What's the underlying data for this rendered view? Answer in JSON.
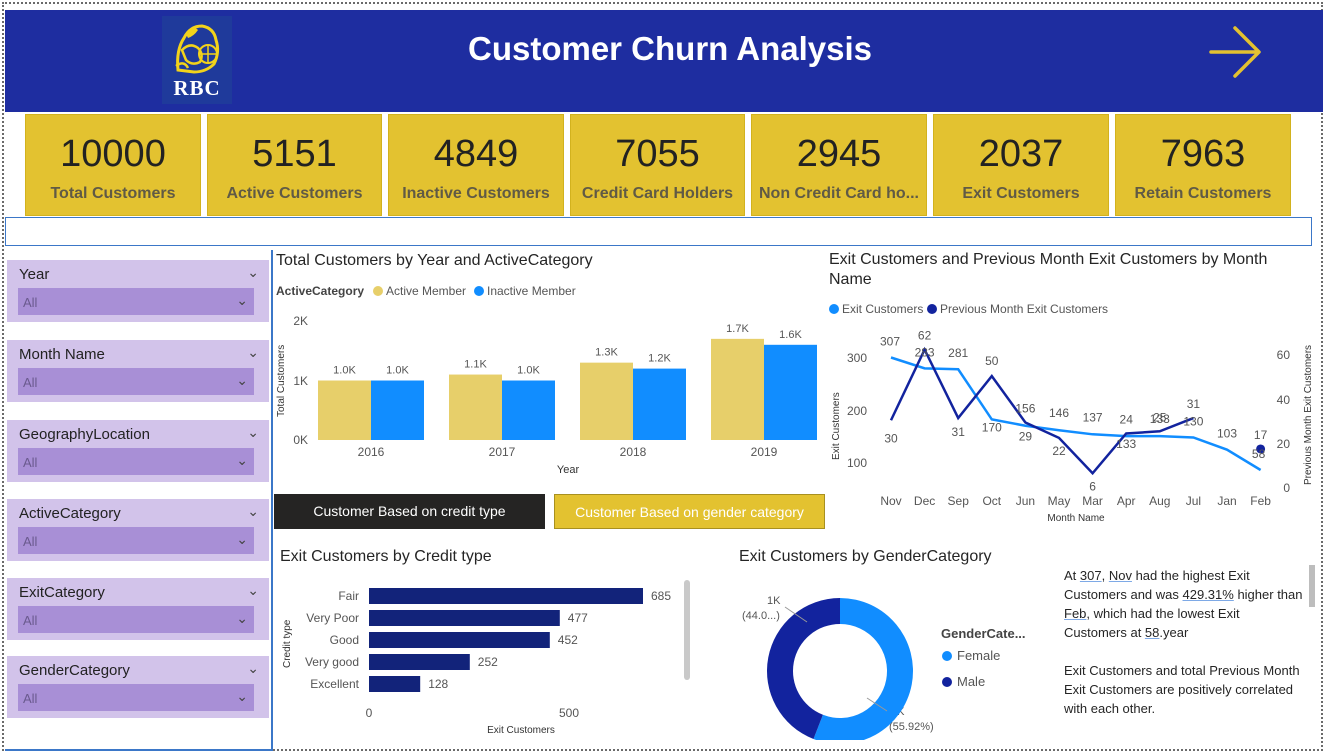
{
  "header": {
    "title": "Customer Churn Analysis",
    "logo_text": "RBC",
    "next_icon": "arrow-right-icon",
    "bg_color": "#1e2da0",
    "accent_color": "#e3c230"
  },
  "kpis": [
    {
      "value": "10000",
      "label": "Total Customers"
    },
    {
      "value": "5151",
      "label": "Active Customers"
    },
    {
      "value": "4849",
      "label": "Inactive Customers"
    },
    {
      "value": "7055",
      "label": "Credit Card Holders"
    },
    {
      "value": "2945",
      "label": "Non Credit Card ho..."
    },
    {
      "value": "2037",
      "label": "Exit Customers"
    },
    {
      "value": "7963",
      "label": "Retain Customers"
    }
  ],
  "slicers": [
    {
      "title": "Year",
      "value": "All"
    },
    {
      "title": "Month Name",
      "value": "All"
    },
    {
      "title": "GeographyLocation",
      "value": "All"
    },
    {
      "title": "ActiveCategory",
      "value": "All"
    },
    {
      "title": "ExitCategory",
      "value": "All"
    },
    {
      "title": "GenderCategory",
      "value": "All"
    }
  ],
  "buttons": {
    "credit": "Customer Based on credit type",
    "gender": "Customer Based on gender category"
  },
  "charts": {
    "year_chart": {
      "title": "Total Customers by Year and ActiveCategory",
      "legend_title": "ActiveCategory",
      "legend": [
        "Active Member",
        "Inactive Member"
      ],
      "xlabel": "Year",
      "ylabel": "Total Customers",
      "yticks": [
        "2K",
        "1K",
        "0K"
      ]
    },
    "month_chart": {
      "title_line1": "Exit Customers and Previous Month Exit Customers by Month",
      "title_line2": "Name",
      "legend": [
        "Exit Customers",
        "Previous Month Exit Customers"
      ],
      "xlabel": "Month Name",
      "ylabel_left": "Exit Customers",
      "ylabel_right": "Previous Month Exit Customers",
      "left_ticks": [
        "300",
        "200",
        "100"
      ],
      "right_ticks": [
        "60",
        "40",
        "20",
        "0"
      ]
    },
    "credit_chart": {
      "title": "Exit Customers by Credit type",
      "xlabel": "Exit Customers",
      "ylabel": "Credit type",
      "xticks": [
        "0",
        "500"
      ]
    },
    "gender_chart": {
      "title": "Exit Customers by GenderCategory",
      "legend_title": "GenderCate...",
      "labels": [
        {
          "l1": "1K",
          "l2": "(44.0...)"
        },
        {
          "l1": "1K",
          "l2": "(55.92%)"
        }
      ]
    }
  },
  "insight": {
    "p1_parts": [
      "At ",
      "307",
      ", ",
      "Nov",
      " had the highest Exit Customers and was ",
      "429.31%",
      " higher than ",
      "Feb",
      ", which had the lowest Exit Customers at ",
      "58",
      ".year"
    ],
    "p2": "Exit Customers and total Previous Month Exit Customers are positively correlated with each other."
  },
  "chart_data": [
    {
      "type": "bar",
      "title": "Total Customers by Year and ActiveCategory",
      "categories": [
        "2016",
        "2017",
        "2018",
        "2019"
      ],
      "series": [
        {
          "name": "Active Member",
          "values": [
            1000,
            1100,
            1300,
            1700
          ],
          "labels": [
            "1.0K",
            "1.1K",
            "1.3K",
            "1.7K"
          ],
          "color": "#e7cf6a"
        },
        {
          "name": "Inactive Member",
          "values": [
            1000,
            1000,
            1200,
            1600
          ],
          "labels": [
            "1.0K",
            "1.0K",
            "1.2K",
            "1.6K"
          ],
          "color": "#118dff"
        }
      ],
      "ylim": [
        0,
        2000
      ],
      "xlabel": "Year",
      "ylabel": "Total Customers"
    },
    {
      "type": "line",
      "title": "Exit Customers and Previous Month Exit Customers by Month Name",
      "categories": [
        "Nov",
        "Dec",
        "Sep",
        "Oct",
        "Jun",
        "May",
        "Mar",
        "Apr",
        "Aug",
        "Jul",
        "Jan",
        "Feb"
      ],
      "series": [
        {
          "name": "Exit Customers",
          "axis": "left",
          "values": [
            307,
            283,
            281,
            170,
            156,
            146,
            137,
            133,
            133,
            130,
            103,
            58
          ],
          "color": "#118dff"
        },
        {
          "name": "Previous Month Exit Customers",
          "axis": "right",
          "values": [
            30,
            62,
            31,
            50,
            29,
            22,
            6,
            24,
            25,
            31,
            null,
            17
          ],
          "color": "#12239e"
        }
      ],
      "ylim_left": [
        50,
        330
      ],
      "ylim_right": [
        0,
        67
      ],
      "xlabel": "Month Name",
      "ylabel": "Exit Customers",
      "ylabel_right": "Previous Month Exit Customers"
    },
    {
      "type": "bar",
      "orientation": "horizontal",
      "title": "Exit Customers by Credit type",
      "categories": [
        "Fair",
        "Very Poor",
        "Good",
        "Very good",
        "Excellent"
      ],
      "values": [
        685,
        477,
        452,
        252,
        128
      ],
      "xlim": [
        0,
        760
      ],
      "xlabel": "Exit Customers",
      "ylabel": "Credit type",
      "color": "#12237a"
    },
    {
      "type": "pie",
      "title": "Exit Customers by GenderCategory",
      "categories": [
        "Female",
        "Male"
      ],
      "values": [
        55.92,
        44.08
      ],
      "colors": [
        "#118dff",
        "#12239e"
      ]
    }
  ]
}
